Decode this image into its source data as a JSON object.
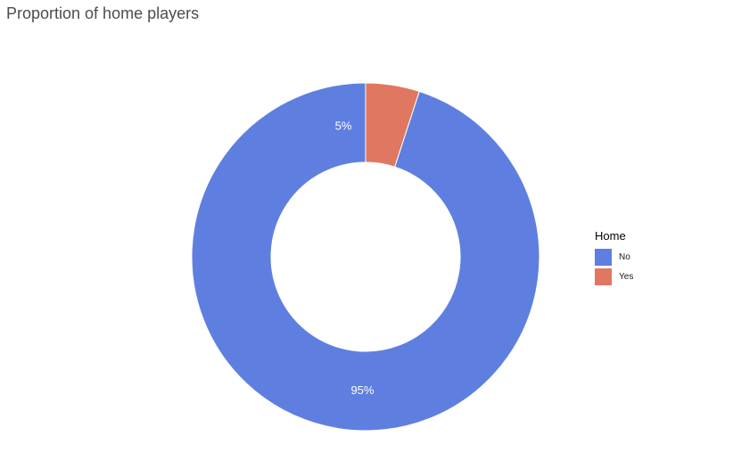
{
  "chart_data": {
    "type": "pie",
    "donut": true,
    "title": "Proportion of home players",
    "legend": {
      "title": "Home",
      "placement": "right"
    },
    "slices": [
      {
        "label": "No",
        "value": 95,
        "display": "95%",
        "color": "#5f7fe0"
      },
      {
        "label": "Yes",
        "value": 5,
        "display": "5%",
        "color": "#e07760"
      }
    ]
  }
}
